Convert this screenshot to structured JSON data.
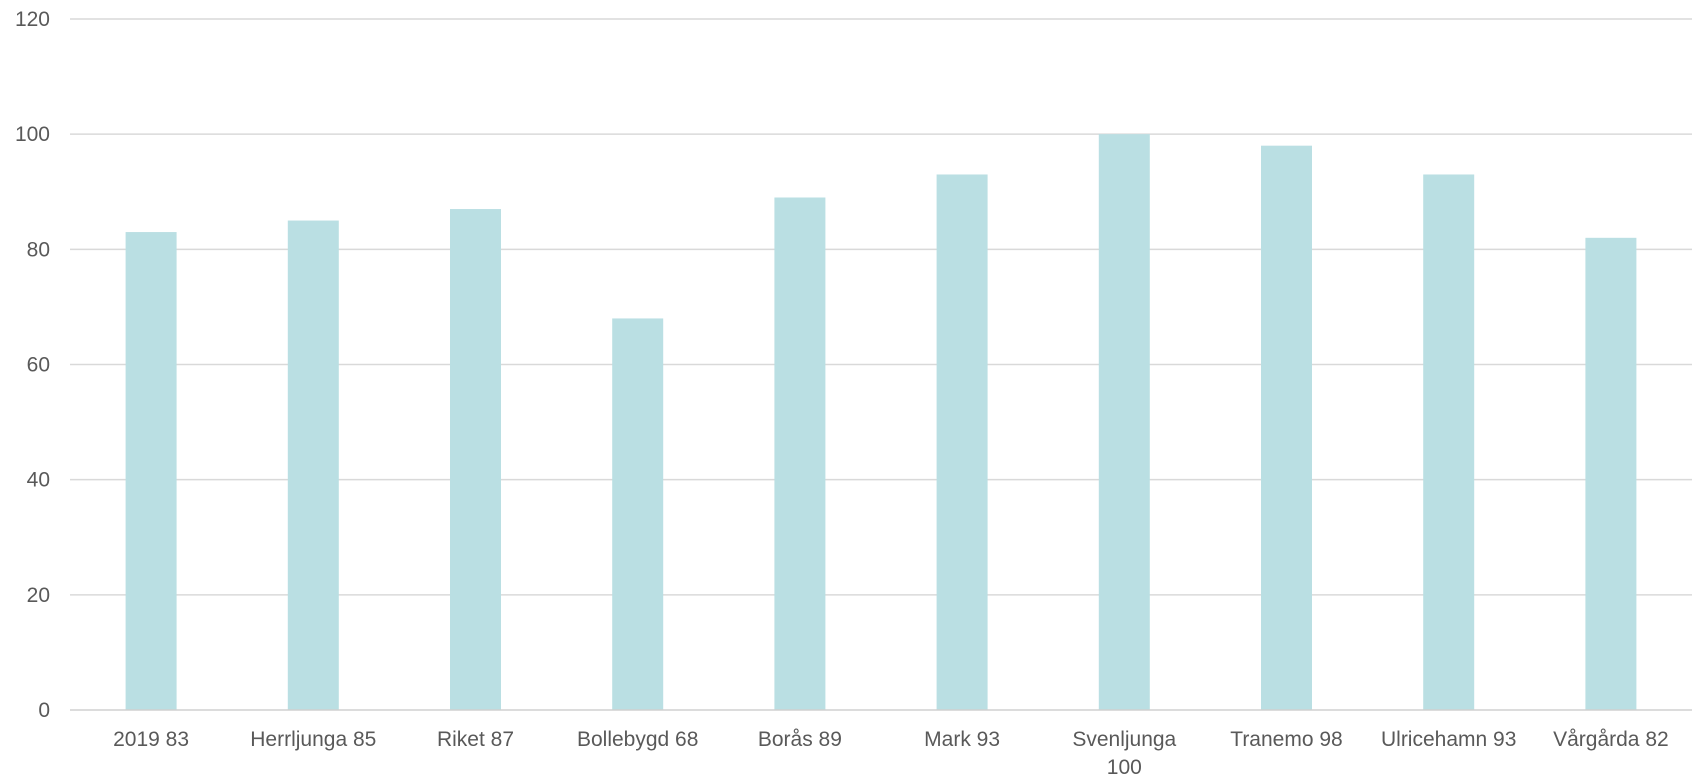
{
  "chart_data": {
    "type": "bar",
    "categories": [
      "2019 83",
      "Herrljunga 85",
      "Riket 87",
      "Bollebygd 68",
      "Borås 89",
      "Mark 93",
      "Svenljunga 100",
      "Tranemo 98",
      "Ulricehamn 93",
      "Vårgårda 82"
    ],
    "values": [
      83,
      85,
      87,
      68,
      89,
      93,
      100,
      98,
      93,
      82
    ],
    "ylim": [
      0,
      120
    ],
    "yticks": [
      0,
      20,
      40,
      60,
      80,
      100,
      120
    ],
    "title": "",
    "xlabel": "",
    "ylabel": "",
    "grid": true,
    "legend": "none",
    "colors": {
      "bar": "#badfe3",
      "grid": "#d9d9d9",
      "text": "#595959"
    }
  }
}
